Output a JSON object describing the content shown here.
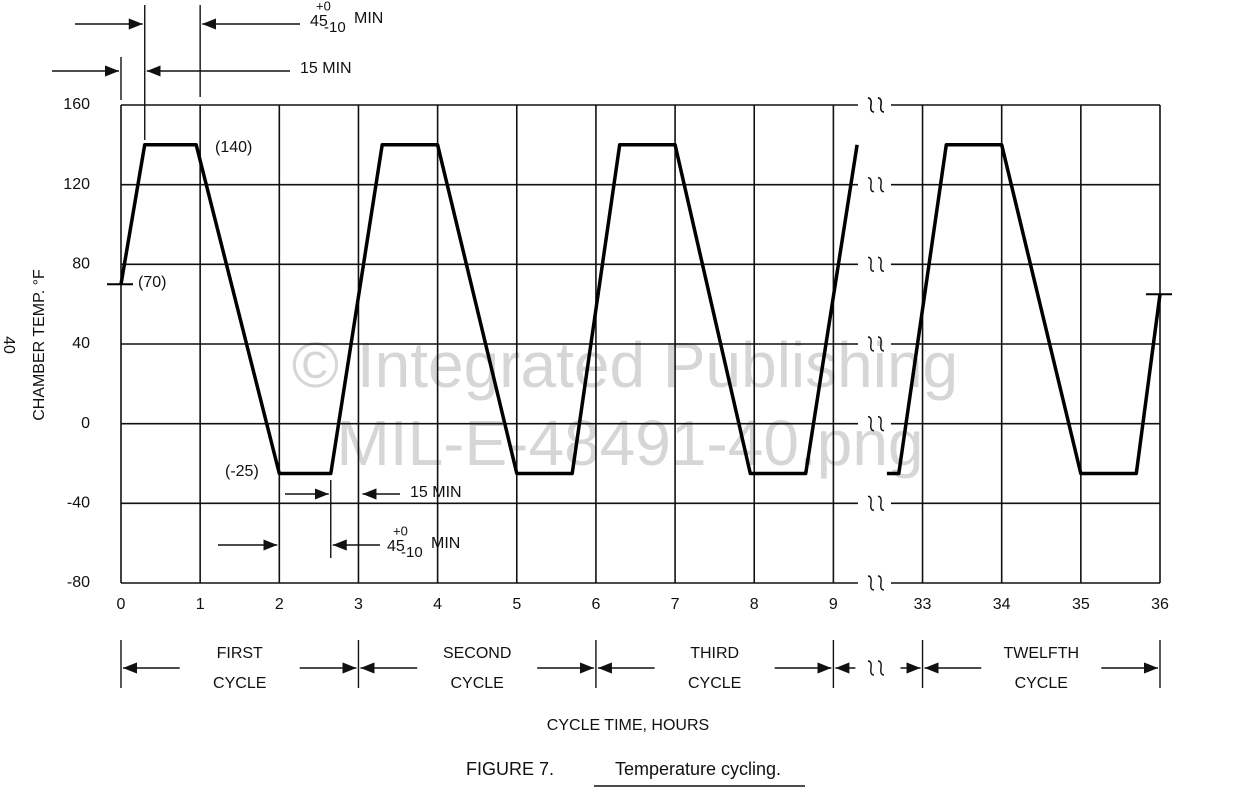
{
  "chart_data": {
    "type": "line",
    "watermark": [
      "© Integrated Publishing",
      "MIL-E-48491-40.png"
    ],
    "page_number": "40",
    "y_label": "CHAMBER TEMP. °F",
    "x_label": "CYCLE TIME, HOURS",
    "caption": {
      "figure": "FIGURE 7.",
      "title": "Temperature cycling."
    },
    "xlim": [
      0,
      36
    ],
    "x_break": [
      9.5,
      32.5
    ],
    "xticks": [
      0,
      1,
      2,
      3,
      4,
      5,
      6,
      7,
      8,
      9,
      33,
      34,
      35,
      36
    ],
    "ylim": [
      -80,
      160
    ],
    "yticks": [
      160,
      120,
      80,
      40,
      0,
      -40,
      -80
    ],
    "grid": true,
    "color": "#000000",
    "x": [
      0,
      0.3,
      0.95,
      2,
      2.65,
      3.3,
      4,
      5,
      5.7,
      6.3,
      7,
      7.95,
      8.65,
      9.3,
      null,
      32.55,
      32.7,
      33.3,
      34,
      35,
      35.7,
      36
    ],
    "values": [
      70,
      140,
      140,
      -25,
      -25,
      140,
      140,
      -25,
      -25,
      140,
      140,
      -25,
      -25,
      140,
      null,
      -25,
      -25,
      140,
      140,
      -25,
      -25,
      65
    ],
    "annotations": [
      "(140)",
      "(70)",
      "(-25)"
    ],
    "tolerance": {
      "main": "45",
      "upper": "+0",
      "lower": "-10",
      "unit": "MIN"
    },
    "short_interval": "15 MIN",
    "cycles": [
      {
        "from": 0,
        "to": 3,
        "text": [
          "FIRST",
          "CYCLE"
        ]
      },
      {
        "from": 3,
        "to": 6,
        "text": [
          "SECOND",
          "CYCLE"
        ]
      },
      {
        "from": 6,
        "to": 9,
        "text": [
          "THIRD",
          "CYCLE"
        ]
      },
      {
        "from": 33,
        "to": 36,
        "text": [
          "TWELFTH",
          "CYCLE"
        ]
      }
    ]
  }
}
